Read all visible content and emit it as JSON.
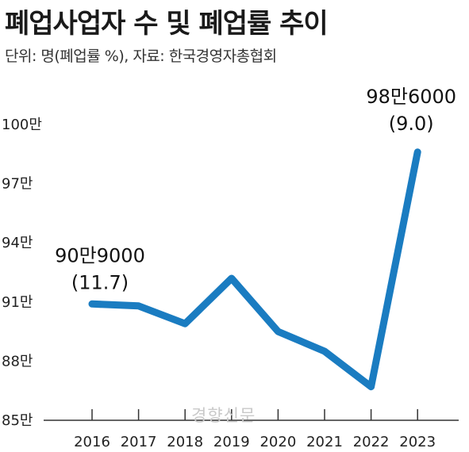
{
  "header": {
    "title": "폐업사업자 수 및 폐업률 추이",
    "subtitle": "단위: 명(폐업률 %), 자료: 한국경영자총협회"
  },
  "watermark": "경향신문",
  "colors": {
    "line": "#1a7cc1",
    "text": "#1a1a1a",
    "axis": "#333333"
  },
  "chart_data": {
    "type": "line",
    "title": "폐업사업자 수 및 폐업률 추이",
    "subtitle": "단위: 명(폐업률 %), 자료: 한국경영자총협회",
    "categories": [
      "2016",
      "2017",
      "2018",
      "2019",
      "2020",
      "2021",
      "2022",
      "2023"
    ],
    "values": [
      909000,
      908000,
      899000,
      922000,
      895000,
      885000,
      867000,
      986000
    ],
    "yticks": [
      {
        "value": 850000,
        "label": "85만"
      },
      {
        "value": 880000,
        "label": "88만"
      },
      {
        "value": 910000,
        "label": "91만"
      },
      {
        "value": 940000,
        "label": "94만"
      },
      {
        "value": 970000,
        "label": "97만"
      },
      {
        "value": 1000000,
        "label": "100만"
      }
    ],
    "ylim": [
      850000,
      1000000
    ],
    "annotations": [
      {
        "category": "2016",
        "lines": [
          "90만9000",
          "(11.7)"
        ],
        "rate": 11.7
      },
      {
        "category": "2023",
        "lines": [
          "98만6000",
          "(9.0)"
        ],
        "rate": 9.0
      }
    ],
    "grid": false,
    "legend": "none"
  }
}
